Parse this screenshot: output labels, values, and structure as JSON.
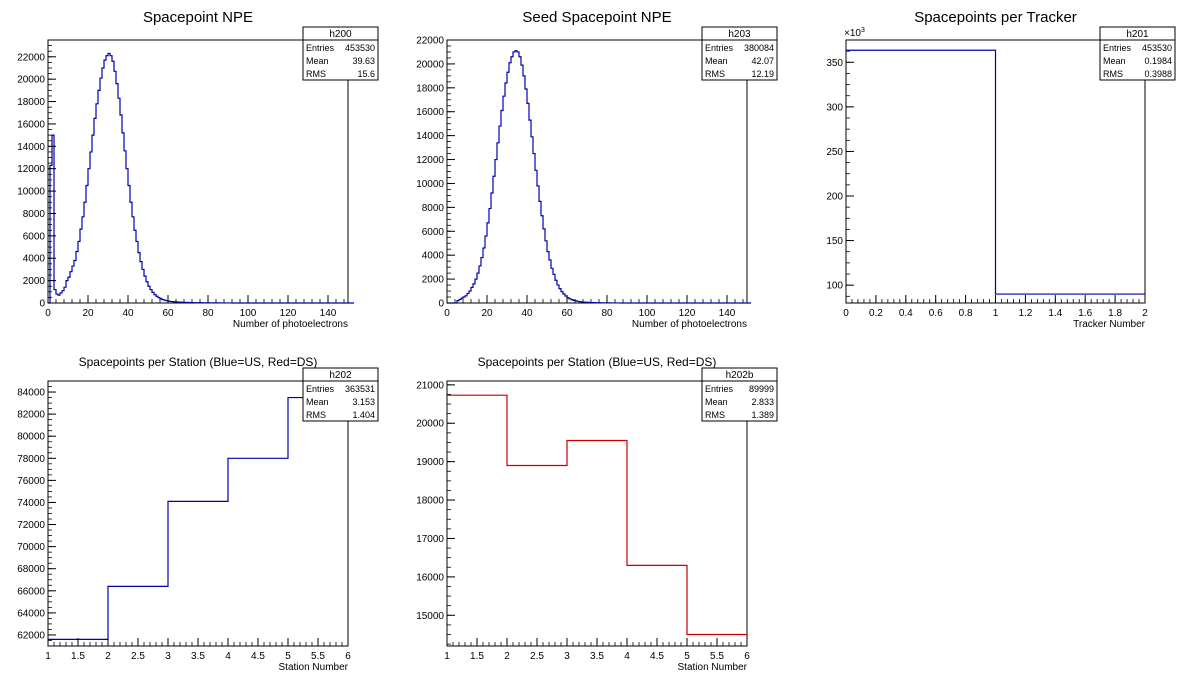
{
  "chart_data": [
    {
      "id": "h200",
      "type": "histogram",
      "title": "Spacepoint NPE",
      "xlabel": "Number of photoelectrons",
      "ylabel": "",
      "xlim": [
        0,
        150
      ],
      "ylim": [
        0,
        23500
      ],
      "x_ticks": [
        0,
        20,
        40,
        60,
        80,
        100,
        120,
        140
      ],
      "y_ticks": [
        0,
        2000,
        4000,
        6000,
        8000,
        10000,
        12000,
        14000,
        16000,
        18000,
        20000,
        22000
      ],
      "bin_width": 1,
      "bin_start": 0,
      "values": [
        0,
        12300,
        15000,
        1200,
        800,
        700,
        900,
        1100,
        1400,
        2000,
        2300,
        2800,
        3300,
        3800,
        4600,
        5500,
        6600,
        7700,
        9000,
        10500,
        12000,
        13500,
        15000,
        16500,
        17800,
        19000,
        20100,
        21000,
        21700,
        22100,
        22300,
        22100,
        21600,
        20700,
        19600,
        18300,
        16800,
        15200,
        13600,
        12000,
        10500,
        9000,
        7700,
        6500,
        5500,
        4500,
        3700,
        3000,
        2400,
        1900,
        1500,
        1200,
        950,
        750,
        600,
        480,
        380,
        300,
        250,
        200,
        170,
        140,
        120,
        100,
        90,
        80,
        70,
        60,
        55,
        50,
        45,
        40,
        35,
        30,
        28,
        25,
        23,
        20,
        18,
        16,
        15,
        13,
        12,
        10,
        9,
        8,
        7,
        6,
        5,
        5,
        4,
        4,
        3,
        3,
        2,
        2,
        2,
        1,
        1,
        1,
        1,
        1,
        0,
        0,
        0,
        0,
        0,
        0,
        0,
        0,
        0,
        0,
        0,
        0,
        0,
        0,
        0,
        0,
        0,
        0,
        0,
        0,
        0,
        0,
        0,
        0,
        0,
        0,
        0,
        0,
        0,
        0,
        0,
        0,
        0,
        0,
        0,
        0,
        0,
        0,
        0,
        0,
        0,
        0,
        0,
        0,
        0,
        0,
        0,
        0,
        0,
        0,
        0
      ],
      "color": "#0000aa",
      "stats": {
        "name": "h200",
        "entries": "453530",
        "mean": "39.63",
        "rms": "15.6"
      }
    },
    {
      "id": "h203",
      "type": "histogram",
      "title": "Seed Spacepoint NPE",
      "xlabel": "Number of photoelectrons",
      "ylabel": "",
      "xlim": [
        0,
        150
      ],
      "ylim": [
        0,
        22000
      ],
      "x_ticks": [
        0,
        20,
        40,
        60,
        80,
        100,
        120,
        140
      ],
      "y_ticks": [
        0,
        2000,
        4000,
        6000,
        8000,
        10000,
        12000,
        14000,
        16000,
        18000,
        20000,
        22000
      ],
      "bin_width": 1,
      "bin_start": 0,
      "values": [
        0,
        0,
        0,
        0,
        0,
        200,
        300,
        400,
        500,
        600,
        800,
        1000,
        1300,
        1600,
        2000,
        2500,
        3100,
        3800,
        4600,
        5600,
        6700,
        7900,
        9200,
        10600,
        12000,
        13400,
        14800,
        16100,
        17300,
        18400,
        19300,
        20100,
        20600,
        21000,
        21100,
        21000,
        20600,
        19900,
        19000,
        17900,
        16700,
        15300,
        13900,
        12500,
        11100,
        9800,
        8500,
        7300,
        6200,
        5200,
        4300,
        3600,
        2900,
        2400,
        1900,
        1500,
        1200,
        950,
        750,
        580,
        450,
        350,
        280,
        220,
        180,
        140,
        110,
        90,
        75,
        60,
        50,
        42,
        35,
        30,
        25,
        21,
        18,
        15,
        13,
        11,
        9,
        8,
        7,
        6,
        5,
        4,
        4,
        3,
        3,
        2,
        2,
        2,
        1,
        1,
        1,
        1,
        1,
        0,
        0,
        0,
        0,
        0,
        0,
        0,
        0,
        0,
        0,
        0,
        0,
        0,
        0,
        0,
        0,
        0,
        0,
        0,
        0,
        0,
        0,
        0,
        0,
        0,
        0,
        0,
        0,
        0,
        0,
        0,
        0,
        0,
        0,
        0,
        0,
        0,
        0,
        0,
        0,
        0,
        0,
        0,
        0,
        0,
        0,
        0,
        0,
        0,
        0,
        0,
        0,
        0,
        0,
        0
      ],
      "color": "#0000aa",
      "stats": {
        "name": "h203",
        "entries": "380084",
        "mean": "42.07",
        "rms": "12.19"
      }
    },
    {
      "id": "h201",
      "type": "histogram",
      "title": "Spacepoints per Tracker",
      "xlabel": "Tracker Number",
      "ylabel": "",
      "exponent_label": "×10",
      "exponent_sup": "3",
      "xlim": [
        0,
        2
      ],
      "ylim": [
        80,
        375
      ],
      "x_ticks": [
        0,
        0.2,
        0.4,
        0.6,
        0.8,
        1,
        1.2,
        1.4,
        1.6,
        1.8,
        2
      ],
      "y_ticks": [
        100,
        150,
        200,
        250,
        300,
        350
      ],
      "bin_width": 1,
      "bin_start": 0,
      "values": [
        363.5,
        90
      ],
      "color": "#0000aa",
      "stats": {
        "name": "h201",
        "entries": "453530",
        "mean": "0.1984",
        "rms": "0.3988"
      }
    },
    {
      "id": "h202",
      "type": "histogram",
      "title": "Spacepoints per Station (Blue=US, Red=DS)",
      "xlabel": "Station Number",
      "ylabel": "",
      "xlim": [
        1,
        6
      ],
      "ylim": [
        61000,
        85000
      ],
      "x_ticks": [
        1,
        1.5,
        2,
        2.5,
        3,
        3.5,
        4,
        4.5,
        5,
        5.5,
        6
      ],
      "y_ticks": [
        62000,
        64000,
        66000,
        68000,
        70000,
        72000,
        74000,
        76000,
        78000,
        80000,
        82000,
        84000
      ],
      "bin_width": 1,
      "bin_start": 1,
      "values": [
        61600,
        66400,
        74100,
        78000,
        83500
      ],
      "color": "#0000aa",
      "stats": {
        "name": "h202",
        "entries": "363531",
        "mean": "3.153",
        "rms": "1.404"
      }
    },
    {
      "id": "h202b",
      "type": "histogram",
      "title": "Spacepoints per Station (Blue=US, Red=DS)",
      "xlabel": "Station Number",
      "ylabel": "",
      "xlim": [
        1,
        6
      ],
      "ylim": [
        14200,
        21100
      ],
      "x_ticks": [
        1,
        1.5,
        2,
        2.5,
        3,
        3.5,
        4,
        4.5,
        5,
        5.5,
        6
      ],
      "y_ticks": [
        15000,
        16000,
        17000,
        18000,
        19000,
        20000,
        21000
      ],
      "bin_width": 1,
      "bin_start": 1,
      "values": [
        20730,
        18900,
        19550,
        16300,
        14500
      ],
      "color": "#cc0000",
      "stats": {
        "name": "h202b",
        "entries": "89999",
        "mean": "2.833",
        "rms": "1.389"
      }
    }
  ],
  "stats_labels": {
    "entries": "Entries",
    "mean": "Mean",
    "rms": "RMS"
  }
}
